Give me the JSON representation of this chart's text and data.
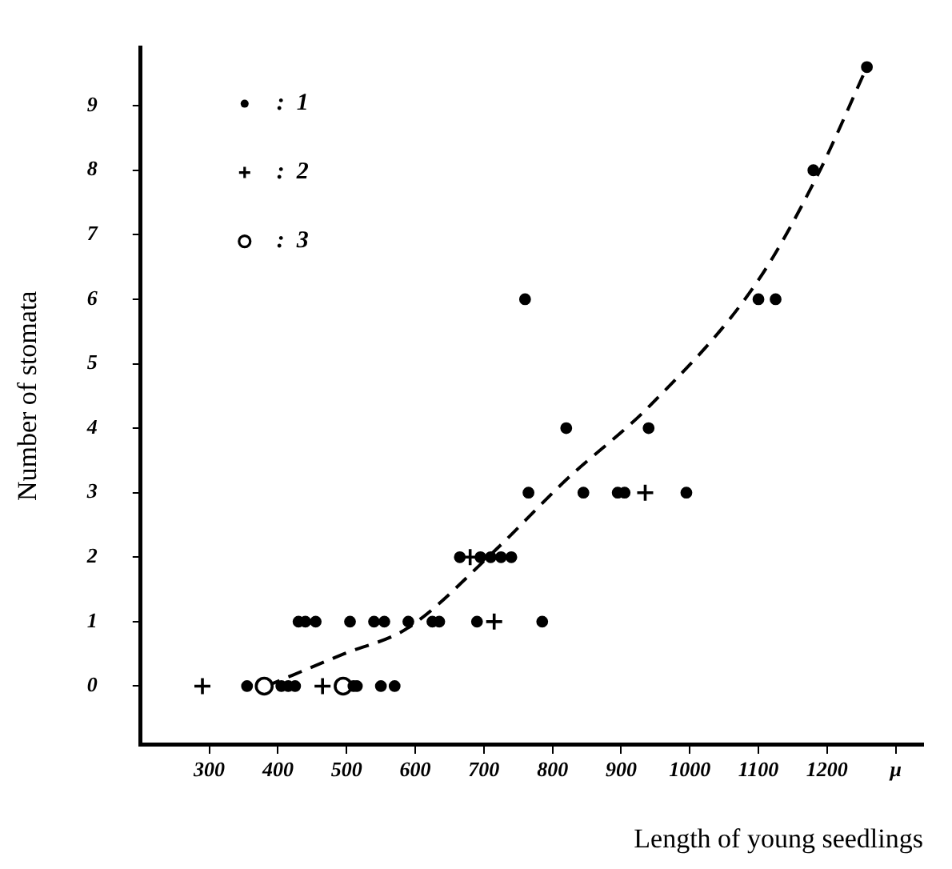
{
  "chart_data": {
    "type": "scatter",
    "xlabel": "Length of young seedlings",
    "ylabel": "Number of stomata",
    "xlim": [
      200,
      1340
    ],
    "ylim": [
      -0.9,
      9.9
    ],
    "xticks": [
      300,
      400,
      500,
      600,
      700,
      800,
      900,
      1000,
      1100,
      1200,
      {
        "value": 1300,
        "label": "μ"
      }
    ],
    "yticks": [
      0,
      1,
      2,
      3,
      4,
      5,
      6,
      7,
      8,
      9
    ],
    "grid": false,
    "legend": "top left",
    "series": [
      {
        "name": ":  1",
        "color": "#000000",
        "marker": "circle",
        "x": [
          355,
          405,
          415,
          425,
          510,
          515,
          550,
          570,
          430,
          440,
          455,
          505,
          540,
          555,
          590,
          625,
          635,
          690,
          785,
          665,
          695,
          710,
          725,
          740,
          765,
          845,
          895,
          905,
          995,
          820,
          940,
          760,
          1100,
          1125,
          1180,
          1258
        ],
        "values": [
          0,
          0,
          0,
          0,
          0,
          0,
          0,
          0,
          1,
          1,
          1,
          1,
          1,
          1,
          1,
          1,
          1,
          1,
          1,
          2,
          2,
          2,
          2,
          2,
          3,
          3,
          3,
          3,
          3,
          4,
          4,
          6,
          6,
          6,
          8,
          9.6
        ]
      },
      {
        "name": ":  2",
        "color": "#000000",
        "marker": "cross",
        "x": [
          290,
          465,
          715,
          680,
          935
        ],
        "values": [
          0,
          0,
          1,
          2,
          3
        ]
      },
      {
        "name": ":  3",
        "color": "#000000",
        "marker": "circle-open",
        "x": [
          380,
          495
        ],
        "values": [
          0,
          0
        ]
      },
      {
        "type": "line",
        "color": "#000000",
        "line_style": "dashed",
        "marker": "none",
        "x": [
          383,
          496,
          589,
          711,
          820,
          942,
          1097,
          1185,
          1258
        ],
        "values": [
          0,
          0.5,
          0.9,
          2.05,
          3.2,
          4.35,
          6.25,
          7.9,
          9.6
        ]
      }
    ]
  }
}
